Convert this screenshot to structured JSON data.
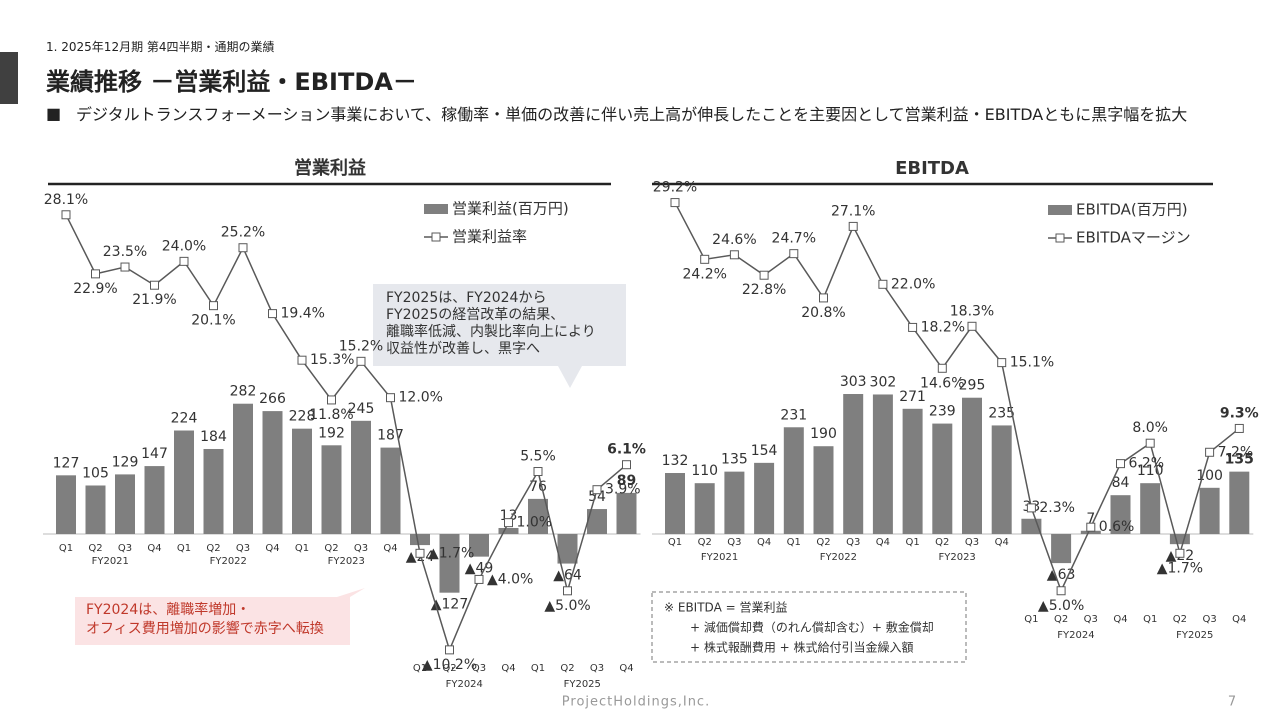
{
  "header": {
    "section": "1. 2025年12月期 第4四半期・通期の業績",
    "title": "業績推移 －営業利益・EBITDA－",
    "bullet": "デジタルトランスフォーメーション事業において、稼働率・単価の改善に伴い売上高が伸長したことを主要因として営業利益・EBITDAともに黒字幅を拡大"
  },
  "chart_data": [
    {
      "type": "bar",
      "title": "営業利益",
      "categories": [
        "Q1",
        "Q2",
        "Q3",
        "Q4",
        "Q1",
        "Q2",
        "Q3",
        "Q4",
        "Q1",
        "Q2",
        "Q3",
        "Q4",
        "Q1",
        "Q2",
        "Q3",
        "Q4",
        "Q1",
        "Q2",
        "Q3",
        "Q4"
      ],
      "year_labels": [
        "FY2021",
        "FY2022",
        "FY2023",
        "FY2024",
        "FY2025"
      ],
      "series": [
        {
          "name": "営業利益(百万円)",
          "color": "#7f7f7f",
          "values": [
            127,
            105,
            129,
            147,
            224,
            184,
            282,
            266,
            228,
            192,
            245,
            187,
            -24,
            -127,
            -49,
            13,
            76,
            -64,
            54,
            89
          ],
          "value_labels": [
            "127",
            "105",
            "129",
            "147",
            "224",
            "184",
            "282",
            "266",
            "228",
            "192",
            "245",
            "187",
            "▲24",
            "▲127",
            "▲49",
            "13",
            "76",
            "▲64",
            "54",
            "89"
          ]
        },
        {
          "name": "営業利益率",
          "type": "line",
          "axis": "y2",
          "color": "#595959",
          "values": [
            28.1,
            22.9,
            23.5,
            21.9,
            24.0,
            20.1,
            25.2,
            19.4,
            15.3,
            11.8,
            15.2,
            12.0,
            -1.7,
            -10.2,
            -4.0,
            1.0,
            5.5,
            -5.0,
            3.9,
            6.1
          ],
          "value_labels": [
            "28.1%",
            "22.9%",
            "23.5%",
            "21.9%",
            "24.0%",
            "20.1%",
            "25.2%",
            "19.4%",
            "15.3%",
            "11.8%",
            "15.2%",
            "12.0%",
            "▲1.7%",
            "▲10.2%",
            "▲4.0%",
            "1.0%",
            "5.5%",
            "▲5.0%",
            "3.9%",
            "6.1%"
          ]
        }
      ],
      "annotations": [
        {
          "lines": [
            "FY2025は、FY2024から",
            "FY2025の経営改革の結果、",
            "離職率低減、内製比率向上により",
            "収益性が改善し、黒字へ"
          ]
        },
        {
          "lines": [
            "FY2024は、離職率増加・",
            "オフィス費用増加の影響で赤字へ転換"
          ]
        }
      ]
    },
    {
      "type": "bar",
      "title": "EBITDA",
      "categories": [
        "Q1",
        "Q2",
        "Q3",
        "Q4",
        "Q1",
        "Q2",
        "Q3",
        "Q4",
        "Q1",
        "Q2",
        "Q3",
        "Q4",
        "Q1",
        "Q2",
        "Q3",
        "Q4",
        "Q1",
        "Q2",
        "Q3",
        "Q4"
      ],
      "year_labels": [
        "FY2021",
        "FY2022",
        "FY2023",
        "FY2024",
        "FY2025"
      ],
      "series": [
        {
          "name": "EBITDA(百万円)",
          "color": "#7f7f7f",
          "values": [
            132,
            110,
            135,
            154,
            231,
            190,
            303,
            302,
            271,
            239,
            295,
            235,
            33,
            -63,
            7,
            84,
            110,
            -22,
            100,
            135
          ],
          "value_labels": [
            "132",
            "110",
            "135",
            "154",
            "231",
            "190",
            "303",
            "302",
            "271",
            "239",
            "295",
            "235",
            "33",
            "▲63",
            "7",
            "84",
            "110",
            "▲22",
            "100",
            "135"
          ]
        },
        {
          "name": "EBITDAマージン",
          "type": "line",
          "axis": "y2",
          "color": "#595959",
          "values": [
            29.2,
            24.2,
            24.6,
            22.8,
            24.7,
            20.8,
            27.1,
            22.0,
            18.2,
            14.6,
            18.3,
            15.1,
            2.3,
            -5.0,
            0.6,
            6.2,
            8.0,
            -1.7,
            7.2,
            9.3
          ],
          "value_labels": [
            "29.2%",
            "24.2%",
            "24.6%",
            "22.8%",
            "24.7%",
            "20.8%",
            "27.1%",
            "22.0%",
            "18.2%",
            "14.6%",
            "18.3%",
            "15.1%",
            "2.3%",
            "▲5.0%",
            "0.6%",
            "6.2%",
            "8.0%",
            "▲1.7%",
            "7.2%",
            "9.3%"
          ]
        }
      ],
      "annotations": []
    }
  ],
  "footnote": [
    "※ EBITDA = 営業利益",
    "+ 減価償却費（のれん償却含む）+ 敷金償却",
    "+ 株式報酬費用 + 株式給付引当金繰入額"
  ],
  "footer": {
    "company": "ProjectHoldings,Inc.",
    "page": "7"
  }
}
